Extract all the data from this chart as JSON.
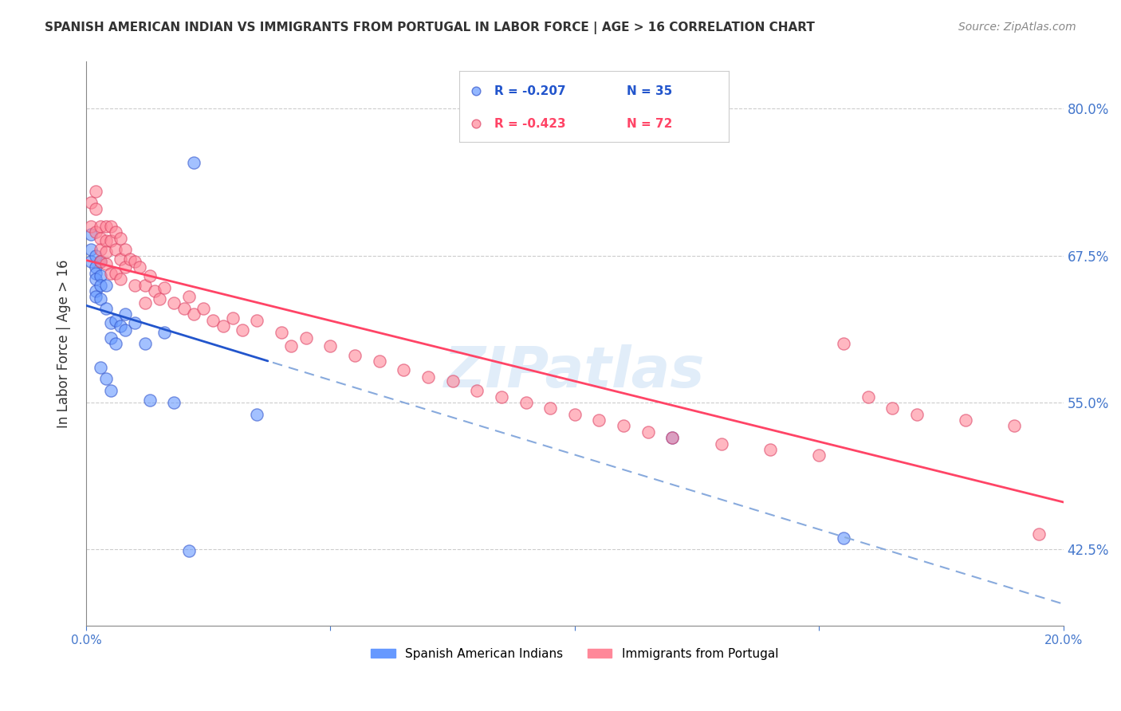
{
  "title": "SPANISH AMERICAN INDIAN VS IMMIGRANTS FROM PORTUGAL IN LABOR FORCE | AGE > 16 CORRELATION CHART",
  "source": "Source: ZipAtlas.com",
  "ylabel": "In Labor Force | Age > 16",
  "xlabel": "",
  "xlim": [
    0.0,
    0.2
  ],
  "ylim": [
    0.36,
    0.84
  ],
  "yticks": [
    0.425,
    0.55,
    0.675,
    0.8
  ],
  "ytick_labels": [
    "42.5%",
    "55.0%",
    "67.5%",
    "80.0%"
  ],
  "xticks": [
    0.0,
    0.05,
    0.1,
    0.15,
    0.2
  ],
  "xtick_labels": [
    "0.0%",
    "",
    "",
    "",
    "20.0%"
  ],
  "legend_R1": "R = -0.207",
  "legend_N1": "N = 35",
  "legend_R2": "R = -0.423",
  "legend_N2": "N = 72",
  "color_blue": "#6699ff",
  "color_pink": "#ff8899",
  "color_blue_dark": "#3355cc",
  "color_pink_dark": "#ff4466",
  "color_axis": "#4477cc",
  "watermark": "ZIPatlas",
  "legend_label_blue": "Spanish American Indians",
  "legend_label_pink": "Immigrants from Portugal",
  "blue_points_x": [
    0.001,
    0.001,
    0.001,
    0.002,
    0.002,
    0.002,
    0.002,
    0.002,
    0.002,
    0.003,
    0.003,
    0.003,
    0.003,
    0.003,
    0.004,
    0.004,
    0.004,
    0.005,
    0.005,
    0.005,
    0.006,
    0.006,
    0.007,
    0.008,
    0.008,
    0.01,
    0.012,
    0.013,
    0.016,
    0.018,
    0.021,
    0.022,
    0.035,
    0.12,
    0.155
  ],
  "blue_points_y": [
    0.693,
    0.68,
    0.67,
    0.675,
    0.665,
    0.66,
    0.655,
    0.645,
    0.64,
    0.67,
    0.658,
    0.65,
    0.638,
    0.58,
    0.65,
    0.63,
    0.57,
    0.618,
    0.605,
    0.56,
    0.62,
    0.6,
    0.615,
    0.625,
    0.612,
    0.618,
    0.6,
    0.552,
    0.61,
    0.55,
    0.424,
    0.754,
    0.54,
    0.52,
    0.435
  ],
  "pink_points_x": [
    0.001,
    0.001,
    0.002,
    0.002,
    0.002,
    0.003,
    0.003,
    0.003,
    0.003,
    0.004,
    0.004,
    0.004,
    0.004,
    0.005,
    0.005,
    0.005,
    0.006,
    0.006,
    0.006,
    0.007,
    0.007,
    0.007,
    0.008,
    0.008,
    0.009,
    0.01,
    0.01,
    0.011,
    0.012,
    0.012,
    0.013,
    0.014,
    0.015,
    0.016,
    0.018,
    0.02,
    0.021,
    0.022,
    0.024,
    0.026,
    0.028,
    0.03,
    0.032,
    0.035,
    0.04,
    0.042,
    0.045,
    0.05,
    0.055,
    0.06,
    0.065,
    0.07,
    0.075,
    0.08,
    0.085,
    0.09,
    0.095,
    0.1,
    0.105,
    0.11,
    0.115,
    0.12,
    0.13,
    0.14,
    0.15,
    0.155,
    0.16,
    0.165,
    0.17,
    0.18,
    0.19,
    0.195
  ],
  "pink_points_y": [
    0.72,
    0.7,
    0.73,
    0.715,
    0.695,
    0.7,
    0.69,
    0.68,
    0.67,
    0.7,
    0.688,
    0.678,
    0.668,
    0.7,
    0.688,
    0.66,
    0.695,
    0.68,
    0.66,
    0.69,
    0.672,
    0.655,
    0.68,
    0.665,
    0.672,
    0.67,
    0.65,
    0.665,
    0.65,
    0.635,
    0.658,
    0.645,
    0.638,
    0.648,
    0.635,
    0.63,
    0.64,
    0.625,
    0.63,
    0.62,
    0.615,
    0.622,
    0.612,
    0.62,
    0.61,
    0.598,
    0.605,
    0.598,
    0.59,
    0.585,
    0.578,
    0.572,
    0.568,
    0.56,
    0.555,
    0.55,
    0.545,
    0.54,
    0.535,
    0.53,
    0.525,
    0.52,
    0.515,
    0.51,
    0.505,
    0.6,
    0.555,
    0.545,
    0.54,
    0.535,
    0.53,
    0.438
  ]
}
